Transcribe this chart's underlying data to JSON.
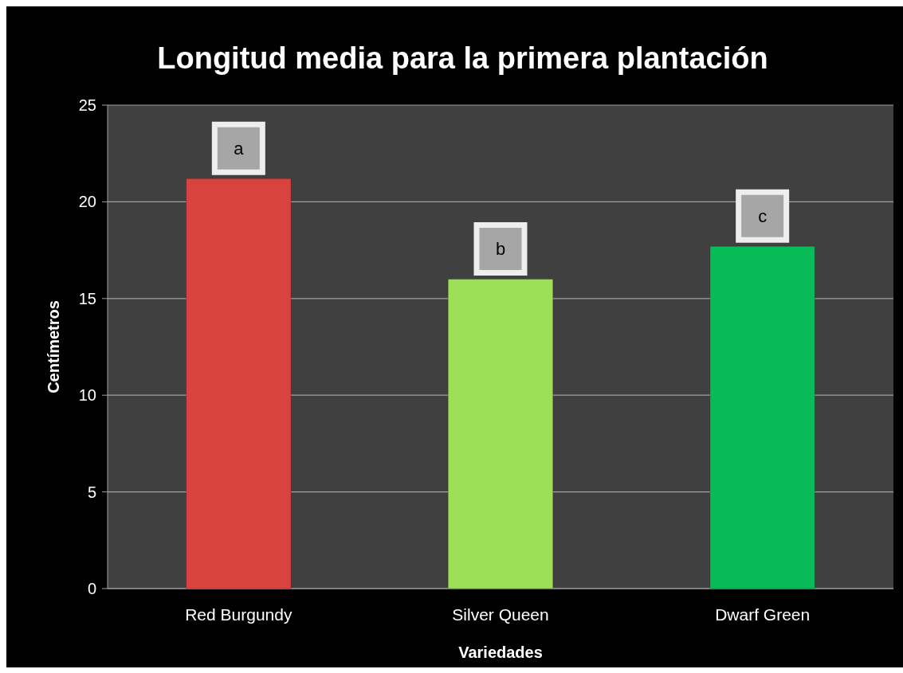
{
  "chart_data": {
    "type": "bar",
    "title": "Longitud media para la primera plantación",
    "xlabel": "Variedades",
    "ylabel": "Centímetros",
    "categories": [
      "Red Burgundy",
      "Silver Queen",
      "Dwarf Green"
    ],
    "values": [
      21.2,
      16.0,
      17.7
    ],
    "colors": [
      "#d9433f",
      "#9edf58",
      "#07bb57"
    ],
    "ylim": [
      0,
      25
    ],
    "yticks": [
      0,
      5,
      10,
      15,
      20,
      25
    ],
    "grid": "y",
    "annotations": [
      {
        "text": "a",
        "x": "Red Burgundy",
        "y": 21.2
      },
      {
        "text": "b",
        "x": "Silver Queen",
        "y": 16.0
      },
      {
        "text": "c",
        "x": "Dwarf Green",
        "y": 17.7
      }
    ]
  }
}
